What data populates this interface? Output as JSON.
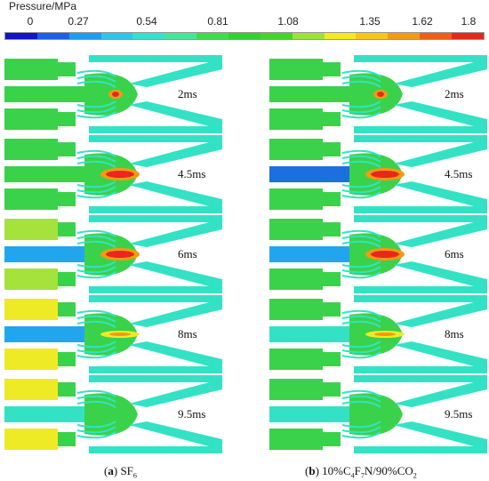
{
  "legend": {
    "title": "Pressure/MPa",
    "ticks": [
      "0",
      "0.27",
      "0.54",
      "0.81",
      "1.08",
      "1.35",
      "1.62",
      "1.8"
    ],
    "colors": [
      "#1515c8",
      "#1e5fe8",
      "#1e9cf0",
      "#2ec5ea",
      "#33e2cc",
      "#46e69a",
      "#3edc4a",
      "#32d22e",
      "#41d628",
      "#9be23a",
      "#f2ea1c",
      "#f7c515",
      "#f39a14",
      "#ef5f16",
      "#e12a19"
    ]
  },
  "panels": {
    "a": {
      "caption_letter": "a",
      "caption_rest": " SF",
      "caption_sub": "6",
      "snapshots": [
        {
          "label": "2ms"
        },
        {
          "label": "4.5ms"
        },
        {
          "label": "6ms"
        },
        {
          "label": "8ms"
        },
        {
          "label": "9.5ms"
        }
      ]
    },
    "b": {
      "caption_letter": "b",
      "caption_parts": [
        " 10%C",
        "4",
        "F",
        "7",
        "N/90%CO",
        "2"
      ],
      "snapshots": [
        {
          "label": "2ms"
        },
        {
          "label": "4.5ms"
        },
        {
          "label": "6ms"
        },
        {
          "label": "8ms"
        },
        {
          "label": "9.5ms"
        }
      ]
    }
  },
  "palette": {
    "cyan": "#33e2c5",
    "green": "#3ad24a",
    "blue_deep": "#1d6fe0",
    "blue_mid": "#21a6ee",
    "yellow": "#eeea26",
    "yellow_green": "#a6e23c",
    "red": "#e8281a",
    "orange": "#f39a14"
  }
}
